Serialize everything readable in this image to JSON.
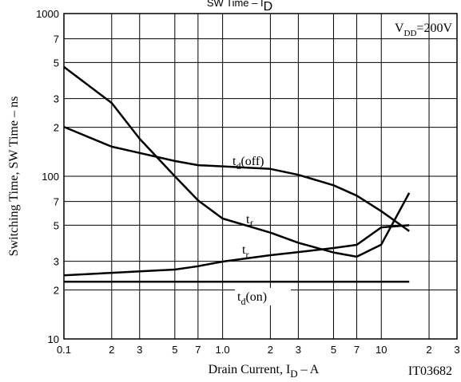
{
  "chart_data": {
    "type": "line",
    "title": {
      "main": "SW Time  –  I",
      "sub": "D"
    },
    "xlabel": {
      "main": "Drain Current, I",
      "sub": "D",
      "after": "  –  A"
    },
    "ylabel": "Switching Time, SW Time  –  ns",
    "annotations": [
      {
        "main": "V",
        "sub": "DD",
        "after": "=200V"
      },
      {
        "main": "IT03682"
      }
    ],
    "log_x": true,
    "log_y": true,
    "grid": true,
    "xlim": [
      0.1,
      30
    ],
    "ylim": [
      10,
      1000
    ],
    "xticks": [
      0.1,
      {
        "value": 0.2,
        "label": "2"
      },
      {
        "value": 0.3,
        "label": "3"
      },
      {
        "value": 0.5,
        "label": "5"
      },
      {
        "value": 0.7,
        "label": "7"
      },
      {
        "value": 1,
        "label": "1.0"
      },
      2,
      3,
      5,
      7,
      10,
      {
        "value": 20,
        "label": "2"
      },
      {
        "value": 30,
        "label": "3"
      }
    ],
    "yticks": [
      10,
      {
        "value": 20,
        "label": "2"
      },
      {
        "value": 30,
        "label": "3"
      },
      {
        "value": 50,
        "label": "5"
      },
      {
        "value": 70,
        "label": "7"
      },
      100,
      {
        "value": 200,
        "label": "2"
      },
      {
        "value": 300,
        "label": "3"
      },
      {
        "value": 500,
        "label": "5"
      },
      {
        "value": 700,
        "label": "7"
      },
      1000
    ],
    "x": [
      0.1,
      0.2,
      0.3,
      0.5,
      0.7,
      1,
      2,
      3,
      5,
      7,
      10,
      15
    ],
    "series": [
      {
        "name": {
          "main": "t",
          "sub": "d",
          "after": "(off)"
        },
        "color": "#000000",
        "values": [
          201,
          152,
          139,
          124,
          117,
          115,
          111,
          102,
          88,
          76,
          61,
          46
        ]
      },
      {
        "name": {
          "main": "t",
          "sub": "f"
        },
        "color": "#000000",
        "values": [
          470,
          282,
          170,
          100,
          71,
          55,
          45,
          39,
          34,
          32,
          38,
          79
        ]
      },
      {
        "name": {
          "main": "t",
          "sub": "r"
        },
        "color": "#000000",
        "values": [
          24.6,
          25.5,
          26,
          26.7,
          28,
          29.9,
          32.7,
          34.2,
          36.2,
          37.9,
          48.5,
          50
        ]
      },
      {
        "name": {
          "main": "t",
          "sub": "d",
          "after": "(on)"
        },
        "color": "#000000",
        "values": [
          22.5,
          22.5,
          22.5,
          22.5,
          22.5,
          22.5,
          22.5,
          22.5,
          22.5,
          22.5,
          22.5,
          22.5
        ]
      }
    ]
  }
}
